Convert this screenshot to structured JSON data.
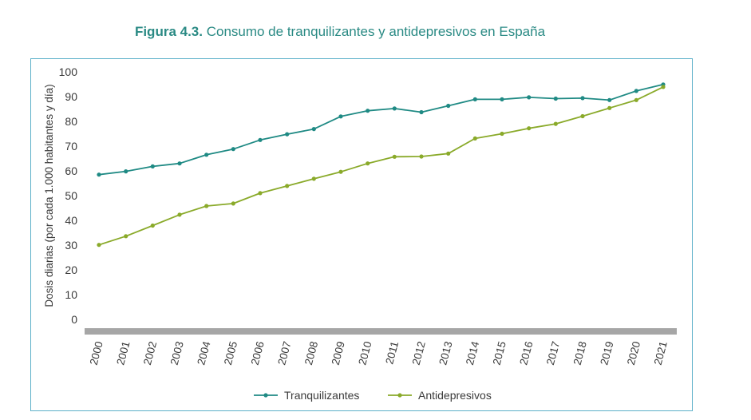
{
  "title": {
    "prefix": "Figura 4.3.",
    "text": " Consumo de tranquilizantes y antidepresivos en España"
  },
  "colors": {
    "title": "#2a8a84",
    "frame": "#5cb0c9",
    "axis_bar": "#a6a6a6",
    "text": "#3a3a3a"
  },
  "chart_data": {
    "type": "line",
    "title": "Consumo de tranquilizantes y antidepresivos en España",
    "xlabel": "",
    "ylabel": "Dosis diarias (por cada 1.000 habitantes y día)",
    "ylim": [
      0,
      100
    ],
    "yticks": [
      0,
      10,
      20,
      30,
      40,
      50,
      60,
      70,
      80,
      90,
      100
    ],
    "grid": false,
    "legend_position": "bottom",
    "categories": [
      "2000",
      "2001",
      "2002",
      "2003",
      "2004",
      "2005",
      "2006",
      "2007",
      "2008",
      "2009",
      "2010",
      "2011",
      "2012",
      "2013",
      "2014",
      "2015",
      "2016",
      "2017",
      "2018",
      "2019",
      "2020",
      "2021"
    ],
    "series": [
      {
        "name": "Tranquilizantes",
        "color": "#1f8a84",
        "values": [
          58.5,
          59.8,
          61.8,
          63.0,
          66.5,
          68.8,
          72.5,
          74.8,
          76.9,
          82.0,
          84.3,
          85.2,
          83.7,
          86.3,
          88.9,
          88.9,
          89.7,
          89.2,
          89.4,
          88.6,
          92.3,
          94.9
        ]
      },
      {
        "name": "Antidepresivos",
        "color": "#8aaa2a",
        "values": [
          30.1,
          33.6,
          37.9,
          42.3,
          45.8,
          46.8,
          51.0,
          53.9,
          56.8,
          59.6,
          63.0,
          65.7,
          65.8,
          67.0,
          73.1,
          75.0,
          77.2,
          79.0,
          82.1,
          85.4,
          88.6,
          93.9
        ]
      }
    ]
  }
}
